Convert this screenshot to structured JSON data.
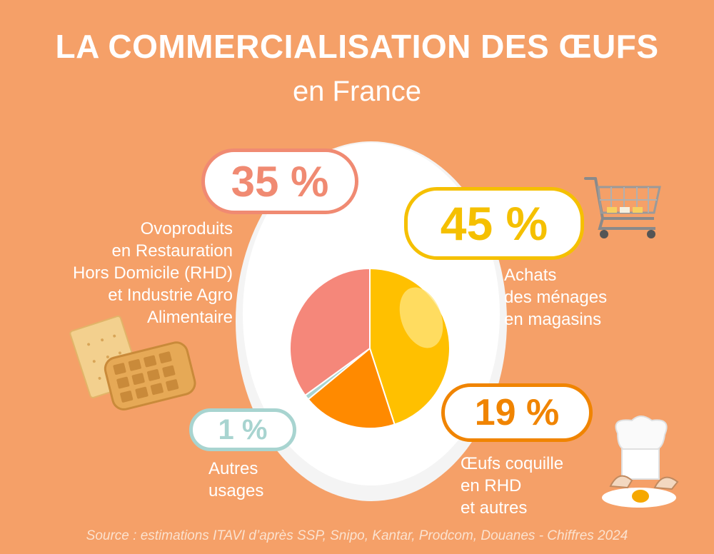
{
  "title": "LA COMMERCIALISATION DES ŒUFS",
  "subtitle": "en France",
  "source": "Source : estimations ITAVI d’après SSP, Snipo, Kantar, Prodcom, Douanes - Chiffres 2024",
  "colors": {
    "background": "#F5A068",
    "ovoproduits": "#F5877A",
    "achats": "#FFC000",
    "coquille": "#FF8A00",
    "autres": "#A8D4D0"
  },
  "chart_data": {
    "type": "pie",
    "slices": [
      {
        "name": "Achats des ménages en magasins",
        "value": 45,
        "label": "45 %",
        "color": "#FFC000"
      },
      {
        "name": "Œufs coquille en RHD et autres",
        "value": 19,
        "label": "19 %",
        "color": "#FF8A00"
      },
      {
        "name": "Autres usages",
        "value": 1,
        "label": "1 %",
        "color": "#A8D4D0"
      },
      {
        "name": "Ovoproduits en Restauration Hors Domicile (RHD) et Industrie Agro Alimentaire",
        "value": 35,
        "label": "35 %",
        "color": "#F5877A"
      }
    ]
  },
  "callouts": {
    "ovoproduits": {
      "value": "35 %",
      "lines": [
        "Ovoproduits",
        "en Restauration",
        "Hors Domicile (RHD)",
        "et Industrie Agro",
        "Alimentaire"
      ]
    },
    "achats": {
      "value": "45 %",
      "lines": [
        "Achats",
        "des ménages",
        "en magasins"
      ]
    },
    "coquille": {
      "value": "19 %",
      "lines": [
        "Œufs coquille",
        "en RHD",
        "et autres"
      ]
    },
    "autres": {
      "value": "1 %",
      "lines": [
        "Autres",
        "usages"
      ]
    }
  },
  "icons": [
    "shopping-cart-icon",
    "cracker-waffle-icon",
    "chef-hat-egg-icon",
    "boiled-egg-icon"
  ]
}
